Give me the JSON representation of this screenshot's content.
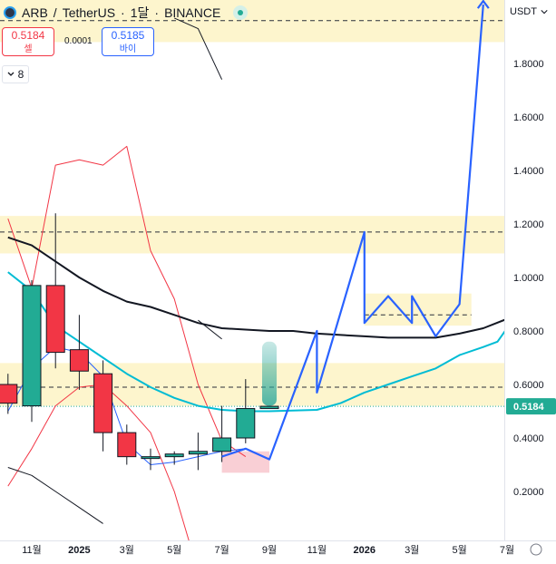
{
  "header": {
    "symbol": "ARB",
    "separator": "/",
    "quote": "TetherUS",
    "interval": "1달",
    "exchange": "BINANCE",
    "dot1": "·",
    "dot2": "·"
  },
  "trade": {
    "sell_price": "0.5184",
    "sell_label": "셀",
    "spread": "0.0001",
    "buy_price": "0.5185",
    "buy_label": "바이"
  },
  "indicator_toggle": {
    "count": "8",
    "icon": "chevron-down-icon"
  },
  "currency_button": {
    "label": "USDT",
    "icon": "chevron-down-icon"
  },
  "last_price_label": "0.5184",
  "colors": {
    "up": "#22ab94",
    "down": "#f23645",
    "projection": "#2962ff",
    "zone": "#fdf3c4",
    "pink_zone": "#f7c3cb",
    "ma_cyan": "#00bcd4",
    "ma_black": "#131722",
    "envelope_red": "#f23645",
    "ma_blue": "#2962ff"
  },
  "chart_data": {
    "type": "candlestick",
    "y_axis": {
      "ticks": [
        "0.2000",
        "0.4000",
        "0.6000",
        "0.8000",
        "1.0000",
        "1.2000",
        "1.4000",
        "1.6000",
        "1.8000"
      ],
      "tick_values": [
        0.2,
        0.4,
        0.6,
        0.8,
        1.0,
        1.2,
        1.4,
        1.6,
        1.8
      ],
      "range": [
        0.12,
        2.0
      ]
    },
    "x_axis": {
      "ticks": [
        "11월",
        "2025",
        "3월",
        "5월",
        "7월",
        "9월",
        "11월",
        "2026",
        "3월",
        "5월",
        "7월"
      ],
      "bold": [
        false,
        true,
        false,
        false,
        false,
        false,
        false,
        true,
        false,
        false,
        false
      ],
      "tick_months": [
        0,
        2,
        4,
        6,
        8,
        10,
        12,
        14,
        16,
        18,
        20
      ]
    },
    "candles": [
      {
        "m": -1,
        "o": 0.6,
        "h": 0.64,
        "l": 0.49,
        "c": 0.53
      },
      {
        "m": 0,
        "o": 0.52,
        "h": 0.99,
        "l": 0.46,
        "c": 0.97
      },
      {
        "m": 1,
        "o": 0.97,
        "h": 1.24,
        "l": 0.66,
        "c": 0.72
      },
      {
        "m": 2,
        "o": 0.73,
        "h": 0.86,
        "l": 0.58,
        "c": 0.65
      },
      {
        "m": 3,
        "o": 0.64,
        "h": 0.69,
        "l": 0.35,
        "c": 0.42
      },
      {
        "m": 4,
        "o": 0.42,
        "h": 0.45,
        "l": 0.3,
        "c": 0.33
      },
      {
        "m": 5,
        "o": 0.33,
        "h": 0.36,
        "l": 0.28,
        "c": 0.33
      },
      {
        "m": 6,
        "o": 0.33,
        "h": 0.35,
        "l": 0.3,
        "c": 0.34
      },
      {
        "m": 7,
        "o": 0.34,
        "h": 0.42,
        "l": 0.28,
        "c": 0.35
      },
      {
        "m": 8,
        "o": 0.35,
        "h": 0.52,
        "l": 0.31,
        "c": 0.4
      },
      {
        "m": 9,
        "o": 0.4,
        "h": 0.62,
        "l": 0.38,
        "c": 0.51
      },
      {
        "m": 10,
        "o": 0.51,
        "h": 0.51,
        "l": 0.51,
        "c": 0.5184
      }
    ],
    "current_price": 0.5184,
    "zones": [
      {
        "from": 1.88,
        "to": 2.05
      },
      {
        "from": 1.09,
        "to": 1.23
      },
      {
        "from": 0.52,
        "to": 0.68
      },
      {
        "from": 0.82,
        "to": 0.94,
        "x_from": 14,
        "x_to": 18.5
      },
      {
        "from": 0.27,
        "to": 0.35,
        "x_from": 8,
        "x_to": 10,
        "pink": true
      }
    ],
    "dashed_levels": [
      {
        "y": 1.96
      },
      {
        "y": 1.17
      },
      {
        "y": 0.59
      },
      {
        "y": 0.86,
        "x_from": 14,
        "x_to": 18.5
      }
    ],
    "projection_path": [
      [
        8,
        0.33
      ],
      [
        9,
        0.36
      ],
      [
        10,
        0.32
      ],
      [
        12,
        0.8
      ],
      [
        12,
        0.57
      ],
      [
        14,
        1.17
      ],
      [
        14,
        0.94
      ],
      [
        14,
        0.83
      ],
      [
        15,
        0.93
      ],
      [
        16,
        0.83
      ],
      [
        16,
        0.93
      ],
      [
        17,
        0.78
      ],
      [
        18,
        0.9
      ],
      [
        19,
        2.02
      ]
    ],
    "envelope_red_upper": [
      [
        -1,
        1.22
      ],
      [
        0,
        0.96
      ],
      [
        1,
        1.42
      ],
      [
        2,
        1.44
      ],
      [
        3,
        1.42
      ],
      [
        4,
        1.49
      ],
      [
        5,
        1.1
      ],
      [
        6,
        0.92
      ],
      [
        7,
        0.6
      ],
      [
        8,
        0.39
      ],
      [
        9,
        0.33
      ]
    ],
    "envelope_red_lower": [
      [
        -1,
        0.22
      ],
      [
        0,
        0.36
      ],
      [
        1,
        0.52
      ],
      [
        2,
        0.59
      ],
      [
        3,
        0.6
      ],
      [
        4,
        0.52
      ],
      [
        5,
        0.42
      ],
      [
        6,
        0.2
      ],
      [
        7,
        -0.1
      ]
    ],
    "ma_blue": [
      [
        -1,
        0.5
      ],
      [
        0,
        0.66
      ],
      [
        1,
        0.74
      ],
      [
        2,
        0.72
      ],
      [
        3,
        0.63
      ],
      [
        4,
        0.38
      ],
      [
        5,
        0.3
      ],
      [
        6,
        0.31
      ],
      [
        7,
        0.33
      ],
      [
        8,
        0.35
      ],
      [
        9,
        0.36
      ]
    ],
    "ma_cyan": [
      [
        -1,
        1.02
      ],
      [
        0,
        0.95
      ],
      [
        1,
        0.82
      ],
      [
        2,
        0.76
      ],
      [
        3,
        0.7
      ],
      [
        4,
        0.64
      ],
      [
        5,
        0.59
      ],
      [
        6,
        0.55
      ],
      [
        7,
        0.52
      ],
      [
        8,
        0.505
      ],
      [
        9,
        0.5
      ],
      [
        10,
        0.5
      ],
      [
        12,
        0.505
      ],
      [
        13,
        0.53
      ],
      [
        14,
        0.57
      ],
      [
        15,
        0.6
      ],
      [
        16,
        0.63
      ],
      [
        17,
        0.66
      ],
      [
        18,
        0.71
      ],
      [
        19,
        0.74
      ],
      [
        19.6,
        0.76
      ],
      [
        20,
        0.81
      ]
    ],
    "ma_black": [
      [
        -1,
        1.15
      ],
      [
        0,
        1.12
      ],
      [
        1,
        1.06
      ],
      [
        2,
        1.0
      ],
      [
        3,
        0.95
      ],
      [
        4,
        0.91
      ],
      [
        5,
        0.89
      ],
      [
        6,
        0.86
      ],
      [
        7,
        0.83
      ],
      [
        8,
        0.81
      ],
      [
        9,
        0.805
      ],
      [
        10,
        0.8
      ],
      [
        11,
        0.8
      ],
      [
        12,
        0.79
      ],
      [
        13,
        0.785
      ],
      [
        14,
        0.78
      ],
      [
        15,
        0.775
      ],
      [
        16,
        0.775
      ],
      [
        17,
        0.775
      ],
      [
        18,
        0.79
      ],
      [
        19,
        0.81
      ],
      [
        20,
        0.845
      ]
    ],
    "black_upper_short": [
      [
        7,
        0.84
      ],
      [
        8,
        0.77
      ]
    ],
    "black_top": [
      [
        6,
        1.97
      ],
      [
        7,
        1.93
      ],
      [
        8,
        1.74
      ]
    ],
    "black_bottom": [
      [
        -1,
        0.29
      ],
      [
        0,
        0.26
      ],
      [
        1,
        0.2
      ],
      [
        2,
        0.14
      ],
      [
        3,
        0.08
      ]
    ]
  }
}
